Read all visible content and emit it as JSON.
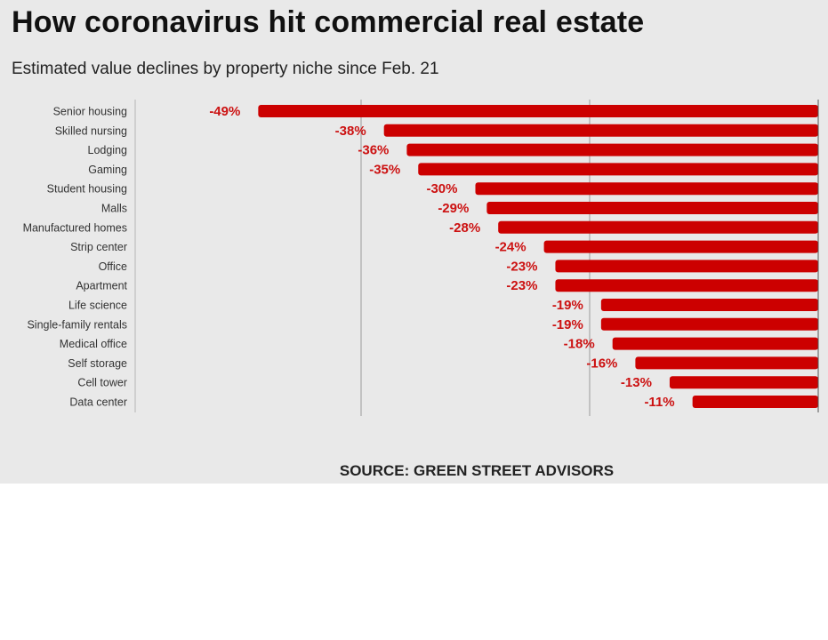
{
  "title": "How coronavirus hit commercial real estate",
  "subtitle": "Estimated value declines by property niche since Feb. 21",
  "source": "SOURCE: GREEN STREET ADVISORS",
  "colors": {
    "bar": "#cc0000",
    "label": "#cc1111",
    "background": "#e9e9e9",
    "grid": "#9a9a9a"
  },
  "chart_data": {
    "type": "bar",
    "orientation": "horizontal",
    "title": "How coronavirus hit commercial real estate",
    "subtitle": "Estimated value declines by property niche since Feb. 21",
    "xlabel": "",
    "ylabel": "",
    "categories": [
      "Senior housing",
      "Skilled nursing",
      "Lodging",
      "Gaming",
      "Student housing",
      "Malls",
      "Manufactured homes",
      "Strip center",
      "Office",
      "Apartment",
      "Life science",
      "Single-family rentals",
      "Medical office",
      "Self storage",
      "Cell tower",
      "Data center"
    ],
    "values": [
      -49,
      -38,
      -36,
      -35,
      -30,
      -29,
      -28,
      -24,
      -23,
      -23,
      -19,
      -19,
      -18,
      -16,
      -13,
      -11
    ],
    "value_labels": [
      "-49%",
      "-38%",
      "-36%",
      "-35%",
      "-30%",
      "-29%",
      "-28%",
      "-24%",
      "-23%",
      "-23%",
      "-19%",
      "-19%",
      "-18%",
      "-16%",
      "-13%",
      "-11%"
    ],
    "xlim": [
      -60,
      0
    ],
    "grid_values": [
      -40,
      -20
    ],
    "grid": true,
    "legend": "none"
  }
}
